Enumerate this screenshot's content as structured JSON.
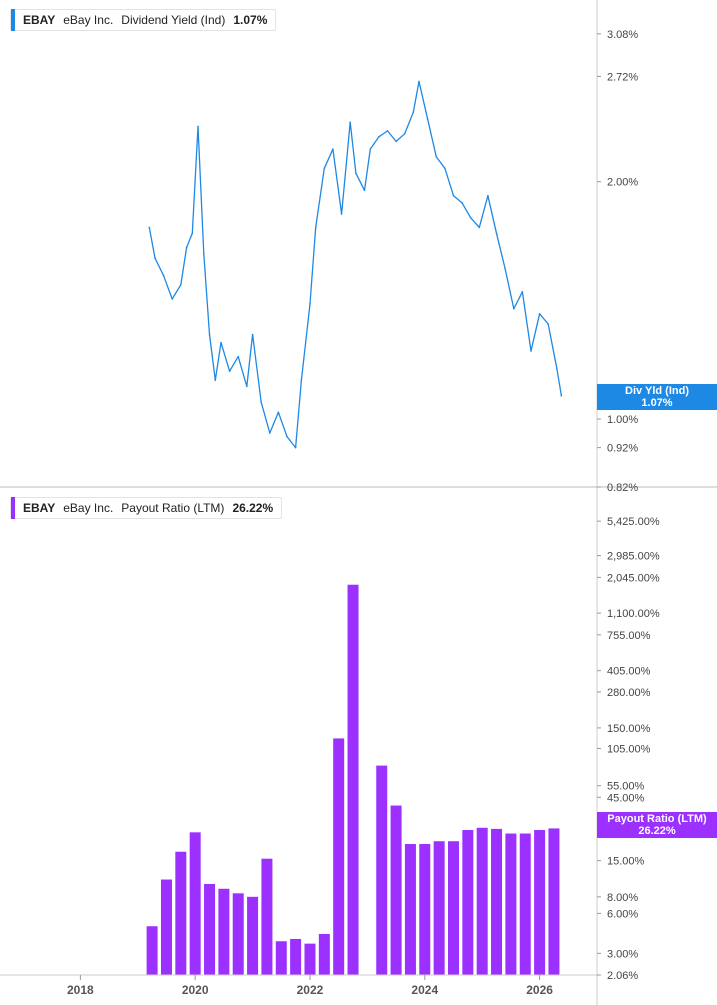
{
  "colors": {
    "yield": "#1e88e5",
    "payout": "#9b30ff",
    "grid": "#dddddd",
    "axis": "#cccccc"
  },
  "legends": {
    "yield": {
      "ticker": "EBAY",
      "name": "eBay Inc.",
      "metric": "Dividend Yield (Ind)",
      "value": "1.07%"
    },
    "payout": {
      "ticker": "EBAY",
      "name": "eBay Inc.",
      "metric": "Payout Ratio (LTM)",
      "value": "26.22%"
    }
  },
  "badges": {
    "yield": {
      "line1": "Div Yld (Ind)",
      "line2": "1.07%"
    },
    "payout": {
      "line1": "Payout Ratio (LTM)",
      "line2": "26.22%"
    }
  },
  "chart_data": [
    {
      "type": "line",
      "name": "Dividend Yield (Ind)",
      "y_scale": "log",
      "ylim": [
        0.82,
        3.4
      ],
      "y_ticks": [
        "3.08%",
        "2.72%",
        "2.00%",
        "1.00%",
        "0.92%",
        "0.82%"
      ],
      "y_tick_values": [
        3.08,
        2.72,
        2.0,
        1.0,
        0.92,
        0.82
      ],
      "x": [
        2019.2,
        2019.3,
        2019.45,
        2019.6,
        2019.75,
        2019.85,
        2019.95,
        2020.05,
        2020.15,
        2020.25,
        2020.35,
        2020.45,
        2020.6,
        2020.75,
        2020.9,
        2021.0,
        2021.15,
        2021.3,
        2021.45,
        2021.6,
        2021.75,
        2021.85,
        2022.0,
        2022.1,
        2022.25,
        2022.4,
        2022.55,
        2022.7,
        2022.8,
        2022.95,
        2023.05,
        2023.2,
        2023.35,
        2023.5,
        2023.65,
        2023.8,
        2023.9,
        2024.05,
        2024.2,
        2024.35,
        2024.5,
        2024.65,
        2024.8,
        2024.95,
        2025.1,
        2025.25,
        2025.4,
        2025.55,
        2025.7,
        2025.85,
        2026.0,
        2026.15,
        2026.3,
        2026.38
      ],
      "y": [
        1.75,
        1.6,
        1.52,
        1.42,
        1.48,
        1.65,
        1.72,
        2.35,
        1.62,
        1.28,
        1.12,
        1.25,
        1.15,
        1.2,
        1.1,
        1.28,
        1.05,
        0.96,
        1.02,
        0.95,
        0.92,
        1.12,
        1.4,
        1.75,
        2.08,
        2.2,
        1.82,
        2.38,
        2.05,
        1.95,
        2.2,
        2.28,
        2.32,
        2.25,
        2.3,
        2.45,
        2.68,
        2.4,
        2.15,
        2.08,
        1.92,
        1.88,
        1.8,
        1.75,
        1.92,
        1.72,
        1.55,
        1.38,
        1.45,
        1.22,
        1.36,
        1.32,
        1.16,
        1.07
      ]
    },
    {
      "type": "bar",
      "name": "Payout Ratio (LTM)",
      "y_scale": "log",
      "ylim": [
        2.06,
        9000
      ],
      "y_ticks": [
        "5,425.00%",
        "2,985.00%",
        "2,045.00%",
        "1,100.00%",
        "755.00%",
        "405.00%",
        "280.00%",
        "150.00%",
        "105.00%",
        "55.00%",
        "45.00%",
        "15.00%",
        "8.00%",
        "6.00%",
        "3.00%",
        "2.06%"
      ],
      "y_tick_values": [
        5425,
        2985,
        2045,
        1100,
        755,
        405,
        280,
        150,
        105,
        55,
        45,
        15,
        8,
        6,
        3,
        2.06
      ],
      "x": [
        2019.25,
        2019.5,
        2019.75,
        2020.0,
        2020.25,
        2020.5,
        2020.75,
        2021.0,
        2021.25,
        2021.5,
        2021.75,
        2022.0,
        2022.25,
        2022.5,
        2022.75,
        2023.25,
        2023.5,
        2023.75,
        2024.0,
        2024.25,
        2024.5,
        2024.75,
        2025.0,
        2025.25,
        2025.5,
        2025.75,
        2026.0,
        2026.25
      ],
      "values": [
        4.8,
        10.8,
        17.5,
        24.5,
        10.0,
        9.2,
        8.5,
        8.0,
        15.5,
        3.7,
        3.85,
        3.55,
        4.2,
        125,
        1800,
        78,
        39,
        20,
        20,
        21,
        21,
        25.5,
        26.5,
        26,
        24,
        24,
        25.5,
        26.22
      ]
    }
  ],
  "x_axis": {
    "ticks": [
      "2018",
      "2020",
      "2022",
      "2024",
      "2026"
    ],
    "tick_values": [
      2018,
      2020,
      2022,
      2024,
      2026
    ],
    "range": [
      2016.6,
      2027.0
    ]
  }
}
